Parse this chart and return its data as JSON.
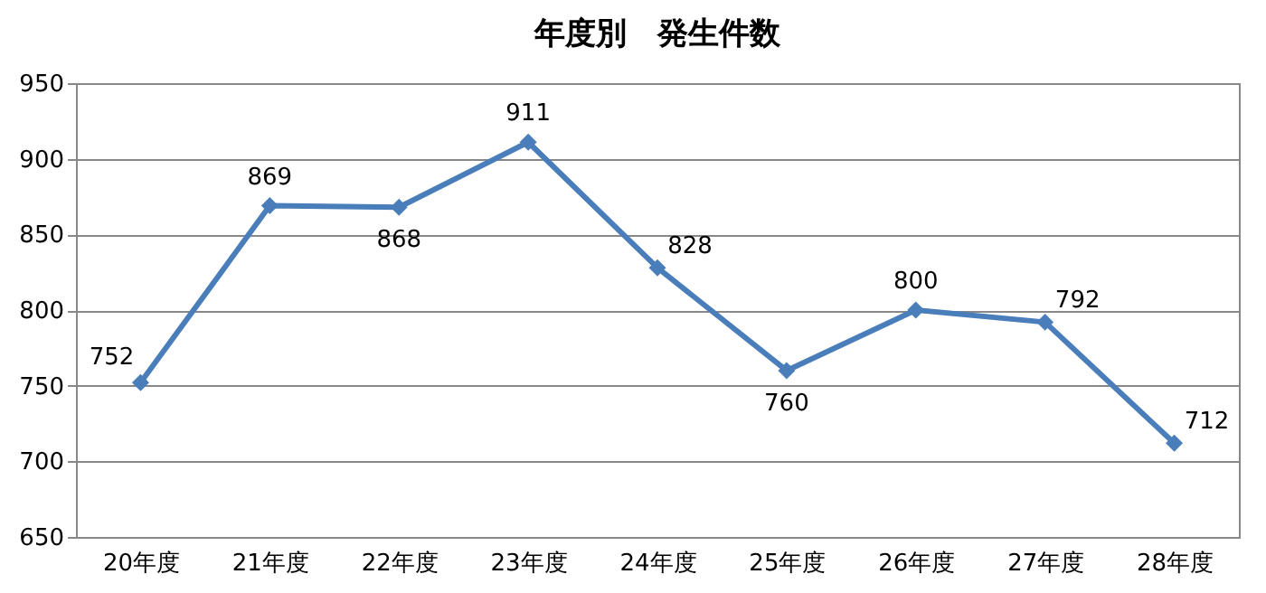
{
  "chart_data": {
    "type": "line",
    "title": "年度別　発生件数",
    "categories": [
      "20年度",
      "21年度",
      "22年度",
      "23年度",
      "24年度",
      "25年度",
      "26年度",
      "27年度",
      "28年度"
    ],
    "series": [
      {
        "color": "#4a7ebb",
        "values": [
          752,
          869,
          868,
          911,
          828,
          760,
          800,
          792,
          712
        ]
      }
    ],
    "ylim": [
      650,
      950
    ],
    "yticks": [
      650,
      700,
      750,
      800,
      850,
      900,
      950
    ],
    "grid": "y",
    "marker": "diamond",
    "line_style": "solid",
    "data_labels": true
  }
}
